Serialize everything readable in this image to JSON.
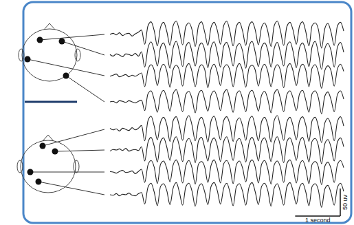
{
  "chart_data": {
    "type": "line",
    "tick_labels": false,
    "grid": false,
    "color": "#222222",
    "x": [
      0,
      0.07,
      0.14,
      0.21,
      0.28,
      0.35,
      0.42,
      0.49,
      0.56,
      0.63,
      0.7,
      0.77,
      0.84,
      0.91,
      0.98,
      1.05,
      1.12,
      1.19,
      1.26,
      1.33,
      1.4,
      1.47,
      1.54,
      1.61,
      1.68,
      1.75,
      1.82,
      1.89,
      1.96,
      2.03,
      2.1,
      2.17,
      2.24,
      2.31,
      2.38,
      2.45,
      2.52,
      2.59,
      2.66,
      2.73,
      2.8,
      2.87,
      2.94,
      3.01,
      3.08,
      3.15,
      3.22,
      3.29,
      3.36,
      3.43,
      3.5,
      3.57,
      3.64,
      3.71,
      3.78,
      3.85,
      3.92,
      3.99,
      4.06,
      4.13,
      4.2,
      4.27,
      4.34,
      4.41,
      4.48,
      4.55,
      4.62,
      4.69,
      4.76,
      4.83,
      4.9,
      4.97,
      5.04,
      5.11,
      5.18
    ],
    "series": [
      {
        "values": [
          0,
          2,
          -1,
          3,
          -2,
          1,
          2,
          -3,
          1,
          4,
          8,
          -18,
          15,
          23,
          7,
          -21,
          13,
          22,
          5,
          -20,
          16,
          24,
          6,
          -19,
          14,
          21,
          8,
          -22,
          15,
          23,
          4,
          -20,
          13,
          22,
          7,
          -18,
          16,
          24,
          5,
          -21,
          14,
          22,
          6,
          -20,
          15,
          23,
          8,
          -19,
          13,
          21,
          5,
          -22,
          16,
          24,
          6,
          -20,
          14,
          22,
          7,
          -18,
          15,
          23,
          5,
          -21,
          16,
          21,
          9,
          -25,
          10,
          20,
          4,
          -20,
          15,
          22,
          6
        ]
      },
      {
        "values": [
          1,
          -2,
          2,
          0,
          -3,
          2,
          1,
          -1,
          3,
          -2,
          6,
          -22,
          12,
          24,
          8,
          -20,
          14,
          22,
          4,
          -24,
          13,
          25,
          6,
          -21,
          15,
          23,
          5,
          -20,
          12,
          22,
          9,
          -23,
          14,
          24,
          4,
          -22,
          16,
          23,
          6,
          -20,
          13,
          21,
          7,
          -24,
          15,
          25,
          5,
          -21,
          14,
          22,
          8,
          -22,
          12,
          23,
          4,
          -20,
          16,
          24,
          6,
          -23,
          13,
          22,
          7,
          -21,
          15,
          25,
          3,
          -26,
          11,
          21,
          8,
          -22,
          14,
          23,
          5
        ]
      },
      {
        "values": [
          -1,
          1,
          3,
          -2,
          0,
          2,
          -2,
          1,
          -1,
          2,
          5,
          -20,
          10,
          20,
          10,
          -18,
          12,
          21,
          8,
          -21,
          11,
          19,
          9,
          -19,
          13,
          22,
          7,
          -20,
          10,
          20,
          11,
          -22,
          12,
          21,
          6,
          -18,
          14,
          20,
          9,
          -20,
          11,
          22,
          8,
          -21,
          13,
          19,
          10,
          -19,
          12,
          21,
          7,
          -20,
          10,
          20,
          9,
          -22,
          13,
          22,
          8,
          -18,
          11,
          21,
          10,
          -20,
          14,
          20,
          6,
          -23,
          9,
          18,
          9,
          -19,
          12,
          21,
          8
        ]
      },
      {
        "values": [
          0,
          1,
          -2,
          2,
          1,
          -1,
          2,
          0,
          -2,
          1,
          3,
          -16,
          14,
          20,
          4,
          -19,
          12,
          21,
          6,
          -17,
          15,
          22,
          3,
          -18,
          13,
          19,
          5,
          -20,
          14,
          21,
          4,
          -17,
          12,
          20,
          7,
          -16,
          15,
          22,
          3,
          -19,
          13,
          20,
          5,
          -18,
          14,
          21,
          6,
          -17,
          12,
          19,
          4,
          -20,
          15,
          22,
          5,
          -18,
          13,
          20,
          6,
          -16,
          14,
          21,
          3,
          -19,
          15,
          20,
          7,
          -22,
          10,
          18,
          4,
          -18,
          13,
          20,
          5
        ]
      },
      {
        "values": [
          2,
          -1,
          1,
          -3,
          2,
          0,
          -2,
          3,
          -1,
          2,
          7,
          -21,
          15,
          24,
          6,
          -19,
          13,
          22,
          8,
          -22,
          16,
          23,
          5,
          -20,
          14,
          25,
          7,
          -21,
          12,
          22,
          6,
          -23,
          15,
          24,
          4,
          -19,
          16,
          23,
          8,
          -22,
          13,
          21,
          6,
          -20,
          15,
          24,
          5,
          -21,
          14,
          22,
          7,
          -23,
          16,
          25,
          4,
          -20,
          13,
          22,
          6,
          -19,
          15,
          23,
          8,
          -22,
          16,
          22,
          5,
          -24,
          11,
          20,
          7,
          -21,
          14,
          23,
          6
        ]
      },
      {
        "values": [
          -2,
          1,
          0,
          2,
          -1,
          3,
          -2,
          0,
          1,
          -1,
          6,
          -20,
          13,
          23,
          7,
          -22,
          15,
          22,
          5,
          -19,
          14,
          24,
          6,
          -21,
          12,
          21,
          8,
          -23,
          16,
          23,
          4,
          -20,
          13,
          22,
          7,
          -21,
          15,
          24,
          5,
          -19,
          14,
          21,
          6,
          -22,
          12,
          23,
          8,
          -20,
          16,
          22,
          5,
          -21,
          13,
          24,
          6,
          -23,
          15,
          22,
          7,
          -19,
          14,
          23,
          4,
          -22,
          16,
          21,
          8,
          -25,
          11,
          19,
          5,
          -20,
          14,
          22,
          6
        ]
      },
      {
        "values": [
          1,
          0,
          -2,
          1,
          3,
          -1,
          0,
          2,
          -3,
          1,
          5,
          -19,
          12,
          21,
          9,
          -21,
          14,
          20,
          6,
          -18,
          13,
          22,
          8,
          -20,
          11,
          21,
          7,
          -22,
          14,
          19,
          9,
          -19,
          12,
          22,
          6,
          -20,
          15,
          21,
          8,
          -21,
          13,
          20,
          7,
          -18,
          12,
          22,
          9,
          -20,
          14,
          21,
          5,
          -22,
          13,
          20,
          8,
          -19,
          15,
          22,
          7,
          -20,
          12,
          21,
          6,
          -21,
          14,
          19,
          9,
          -23,
          10,
          18,
          6,
          -19,
          13,
          21,
          8
        ]
      },
      {
        "values": [
          0,
          -1,
          2,
          -2,
          1,
          0,
          3,
          -1,
          -2,
          2,
          4,
          -17,
          13,
          21,
          5,
          -20,
          15,
          20,
          7,
          -18,
          12,
          22,
          4,
          -19,
          14,
          21,
          6,
          -21,
          13,
          20,
          5,
          -18,
          15,
          22,
          7,
          -17,
          12,
          21,
          4,
          -20,
          14,
          20,
          6,
          -19,
          13,
          22,
          5,
          -18,
          15,
          21,
          7,
          -21,
          12,
          20,
          4,
          -19,
          14,
          22,
          6,
          -17,
          13,
          21,
          5,
          -20,
          15,
          20,
          8,
          -23,
          10,
          17,
          3,
          -19,
          13,
          21,
          6
        ]
      }
    ],
    "scale_bar": {
      "x": {
        "value": 1,
        "label": "1 second"
      },
      "y": {
        "value": 50,
        "label": "50 uv"
      }
    }
  }
}
